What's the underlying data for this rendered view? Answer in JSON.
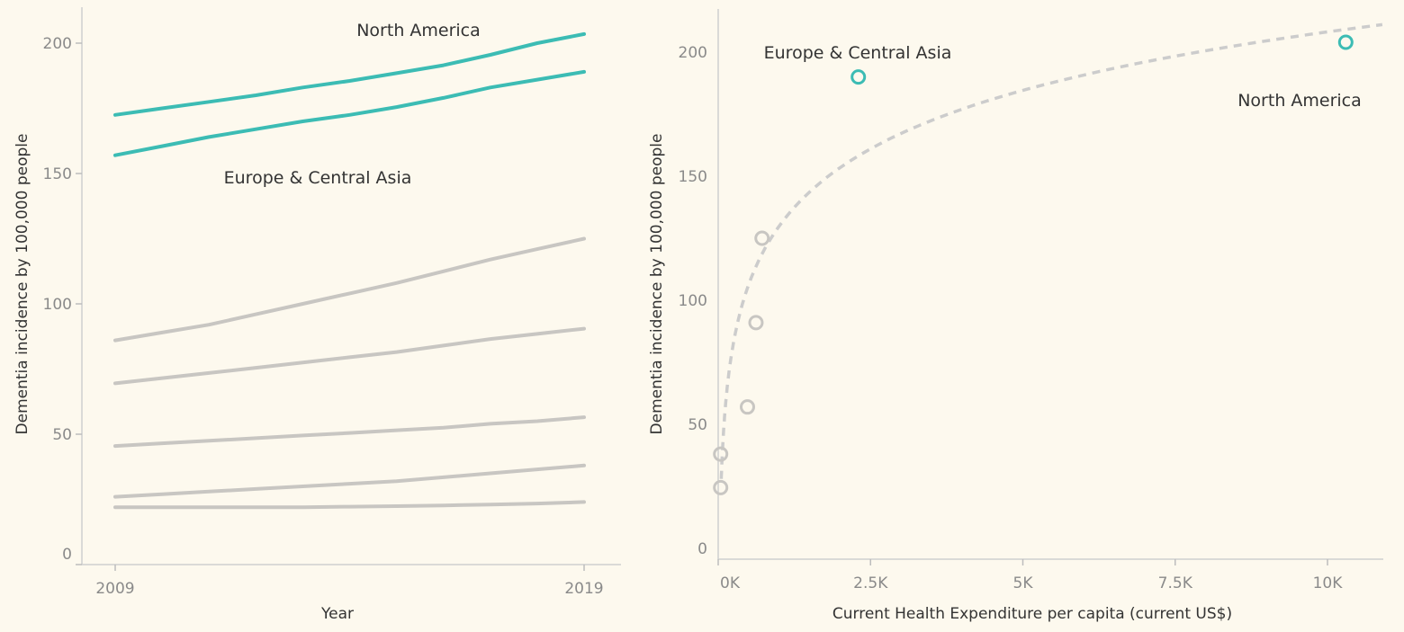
{
  "chart_data": [
    {
      "type": "line",
      "title": "",
      "xlabel": "Year",
      "ylabel": "Dementia incidence by 100,000 people",
      "x": [
        2009,
        2010,
        2011,
        2012,
        2013,
        2014,
        2015,
        2016,
        2017,
        2018,
        2019
      ],
      "x_ticks": [
        "2009",
        "2019"
      ],
      "y_ticks": [
        "0",
        "50",
        "100",
        "150",
        "200"
      ],
      "ylim": [
        0,
        205
      ],
      "series": [
        {
          "name": "North America",
          "highlight": true,
          "values": [
            172.5,
            175.0,
            177.5,
            180.0,
            183.0,
            185.5,
            188.5,
            191.5,
            195.5,
            200.0,
            203.5
          ]
        },
        {
          "name": "Europe & Central Asia",
          "highlight": true,
          "values": [
            157.0,
            160.5,
            164.0,
            167.0,
            170.0,
            172.5,
            175.5,
            179.0,
            183.0,
            186.0,
            189.0
          ]
        },
        {
          "name": "",
          "highlight": false,
          "values": [
            86.0,
            89.0,
            92.0,
            96.0,
            100.0,
            104.0,
            108.0,
            112.5,
            117.0,
            121.0,
            125.0
          ]
        },
        {
          "name": "",
          "highlight": false,
          "values": [
            69.5,
            71.5,
            73.5,
            75.5,
            77.5,
            79.5,
            81.5,
            84.0,
            86.5,
            88.5,
            90.5
          ]
        },
        {
          "name": "",
          "highlight": false,
          "values": [
            45.5,
            46.5,
            47.5,
            48.5,
            49.5,
            50.5,
            51.5,
            52.5,
            54.0,
            55.0,
            56.5
          ]
        },
        {
          "name": "",
          "highlight": false,
          "values": [
            26.0,
            27.0,
            28.0,
            29.0,
            30.0,
            31.0,
            32.0,
            33.5,
            35.0,
            36.5,
            38.0
          ]
        },
        {
          "name": "",
          "highlight": false,
          "values": [
            22.0,
            22.0,
            22.0,
            22.0,
            22.0,
            22.2,
            22.4,
            22.7,
            23.0,
            23.4,
            24.0
          ]
        }
      ],
      "annotations": [
        {
          "text": "North America",
          "series": "North America"
        },
        {
          "text": "Europe & Central Asia",
          "series": "Europe & Central Asia"
        }
      ]
    },
    {
      "type": "scatter",
      "title": "",
      "xlabel": "Current Health Expenditure per capita (current US$)",
      "ylabel": "Dementia incidence by 100,000 people",
      "x_ticks": [
        "0K",
        "2.5K",
        "5K",
        "7.5K",
        "10K"
      ],
      "x_tick_values": [
        0,
        2500,
        5000,
        7500,
        10000
      ],
      "y_ticks": [
        "0",
        "50",
        "100",
        "150",
        "200"
      ],
      "y_tick_values": [
        0,
        50,
        100,
        150,
        200
      ],
      "xlim": [
        0,
        10900
      ],
      "ylim": [
        0,
        215
      ],
      "points": [
        {
          "x": 10300,
          "y": 204,
          "label": "North America",
          "highlight": true
        },
        {
          "x": 2300,
          "y": 190,
          "label": "Europe & Central Asia",
          "highlight": true
        },
        {
          "x": 720,
          "y": 125,
          "label": "",
          "highlight": false
        },
        {
          "x": 620,
          "y": 91,
          "label": "",
          "highlight": false
        },
        {
          "x": 480,
          "y": 57,
          "label": "",
          "highlight": false
        },
        {
          "x": 40,
          "y": 38,
          "label": "",
          "highlight": false
        },
        {
          "x": 40,
          "y": 24.5,
          "label": "",
          "highlight": false
        }
      ],
      "trend": {
        "type": "logarithmic",
        "a": -105,
        "b": 34,
        "x_from": 50,
        "x_to": 10900
      }
    }
  ],
  "colors": {
    "highlight": "#3cbcb4",
    "muted": "#c8c6c2",
    "background": "#fdf9ee"
  }
}
